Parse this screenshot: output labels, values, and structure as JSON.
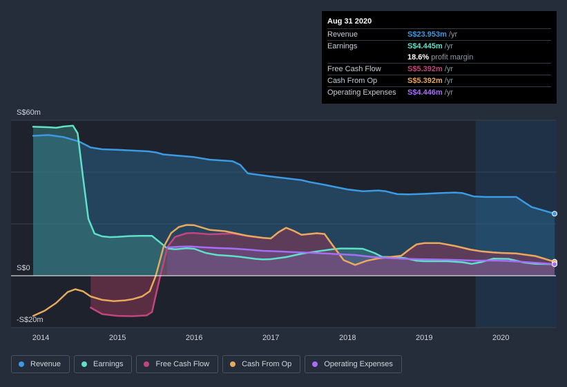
{
  "tooltip": {
    "date": "Aug 31 2020",
    "rows": [
      {
        "label": "Revenue",
        "value": "S$23.953m",
        "unit": "/yr",
        "color": "#3b9ae1"
      },
      {
        "label": "Earnings",
        "value": "S$4.445m",
        "unit": "/yr",
        "color": "#5fe0c8"
      },
      {
        "label": "",
        "value": "18.6%",
        "unit": "profit margin",
        "color": "#ffffff"
      },
      {
        "label": "Free Cash Flow",
        "value": "S$5.392m",
        "unit": "/yr",
        "color": "#c2457e"
      },
      {
        "label": "Cash From Op",
        "value": "S$5.392m",
        "unit": "/yr",
        "color": "#e8a95c"
      },
      {
        "label": "Operating Expenses",
        "value": "S$4.446m",
        "unit": "/yr",
        "color": "#a56ef5"
      }
    ]
  },
  "legend": [
    {
      "label": "Revenue",
      "color": "#3b9ae1"
    },
    {
      "label": "Earnings",
      "color": "#5fe0c8"
    },
    {
      "label": "Free Cash Flow",
      "color": "#c2457e"
    },
    {
      "label": "Cash From Op",
      "color": "#e8a95c"
    },
    {
      "label": "Operating Expenses",
      "color": "#a56ef5"
    }
  ],
  "chart_data": {
    "type": "area",
    "title": "",
    "currency_unit": "S$m",
    "ylim": [
      -20,
      60
    ],
    "y_tick_labels": [
      {
        "value": 60,
        "label": "S$60m"
      },
      {
        "value": 0,
        "label": "S$0"
      },
      {
        "value": -20,
        "label": "-S$20m"
      }
    ],
    "x_range": [
      2013.9,
      2020.7
    ],
    "x_ticks": [
      2014,
      2015,
      2016,
      2017,
      2018,
      2019,
      2020
    ],
    "x_tick_labels": [
      "2014",
      "2015",
      "2016",
      "2017",
      "2018",
      "2019",
      "2020"
    ],
    "forecast_start": 2019.67,
    "series": [
      {
        "name": "Revenue",
        "color": "#3b9ae1",
        "fill": true,
        "points": [
          [
            2013.9,
            54.0
          ],
          [
            2014.1,
            54.3
          ],
          [
            2014.3,
            53.5
          ],
          [
            2014.5,
            51.8
          ],
          [
            2014.65,
            49.5
          ],
          [
            2014.8,
            48.8
          ],
          [
            2015.0,
            48.6
          ],
          [
            2015.2,
            48.3
          ],
          [
            2015.4,
            48.0
          ],
          [
            2015.5,
            47.6
          ],
          [
            2015.6,
            46.8
          ],
          [
            2015.8,
            46.3
          ],
          [
            2016.0,
            45.8
          ],
          [
            2016.2,
            44.8
          ],
          [
            2016.4,
            44.4
          ],
          [
            2016.5,
            44.2
          ],
          [
            2016.6,
            42.8
          ],
          [
            2016.7,
            39.5
          ],
          [
            2016.9,
            38.7
          ],
          [
            2017.0,
            38.3
          ],
          [
            2017.2,
            37.6
          ],
          [
            2017.4,
            36.9
          ],
          [
            2017.5,
            36.2
          ],
          [
            2017.7,
            35.1
          ],
          [
            2017.9,
            33.9
          ],
          [
            2018.0,
            33.3
          ],
          [
            2018.2,
            32.6
          ],
          [
            2018.4,
            32.9
          ],
          [
            2018.5,
            32.6
          ],
          [
            2018.65,
            31.5
          ],
          [
            2018.8,
            31.4
          ],
          [
            2019.0,
            31.6
          ],
          [
            2019.2,
            31.9
          ],
          [
            2019.4,
            32.1
          ],
          [
            2019.5,
            31.9
          ],
          [
            2019.65,
            30.6
          ],
          [
            2019.8,
            30.4
          ],
          [
            2020.0,
            30.4
          ],
          [
            2020.2,
            30.4
          ],
          [
            2020.4,
            26.5
          ],
          [
            2020.7,
            23.95
          ]
        ]
      },
      {
        "name": "Earnings",
        "color": "#5fe0c8",
        "fill": true,
        "points": [
          [
            2013.9,
            57.5
          ],
          [
            2014.1,
            57.3
          ],
          [
            2014.2,
            57.1
          ],
          [
            2014.3,
            57.6
          ],
          [
            2014.42,
            57.9
          ],
          [
            2014.48,
            55.0
          ],
          [
            2014.55,
            38.0
          ],
          [
            2014.62,
            22.0
          ],
          [
            2014.7,
            16.3
          ],
          [
            2014.8,
            15.2
          ],
          [
            2014.9,
            14.9
          ],
          [
            2015.0,
            15.0
          ],
          [
            2015.15,
            15.3
          ],
          [
            2015.3,
            15.4
          ],
          [
            2015.45,
            15.4
          ],
          [
            2015.55,
            13.0
          ],
          [
            2015.65,
            10.5
          ],
          [
            2015.75,
            10.2
          ],
          [
            2015.9,
            10.6
          ],
          [
            2016.0,
            10.4
          ],
          [
            2016.15,
            8.8
          ],
          [
            2016.3,
            8.0
          ],
          [
            2016.5,
            7.6
          ],
          [
            2016.6,
            7.3
          ],
          [
            2016.8,
            6.5
          ],
          [
            2016.9,
            6.3
          ],
          [
            2017.0,
            6.4
          ],
          [
            2017.2,
            7.2
          ],
          [
            2017.4,
            8.5
          ],
          [
            2017.6,
            9.4
          ],
          [
            2017.8,
            10.2
          ],
          [
            2017.9,
            10.5
          ],
          [
            2018.0,
            10.5
          ],
          [
            2018.2,
            10.4
          ],
          [
            2018.35,
            8.8
          ],
          [
            2018.45,
            7.3
          ],
          [
            2018.6,
            7.2
          ],
          [
            2018.75,
            6.8
          ],
          [
            2018.9,
            5.8
          ],
          [
            2019.0,
            5.6
          ],
          [
            2019.3,
            5.6
          ],
          [
            2019.5,
            5.2
          ],
          [
            2019.62,
            4.6
          ],
          [
            2019.75,
            5.3
          ],
          [
            2019.9,
            6.6
          ],
          [
            2020.1,
            6.5
          ],
          [
            2020.3,
            5.1
          ],
          [
            2020.45,
            4.6
          ],
          [
            2020.7,
            4.445
          ]
        ]
      },
      {
        "name": "Free Cash Flow",
        "color": "#c2457e",
        "fill": true,
        "points": [
          [
            2014.65,
            -12.3
          ],
          [
            2014.8,
            -14.8
          ],
          [
            2015.0,
            -15.5
          ],
          [
            2015.2,
            -15.6
          ],
          [
            2015.38,
            -15.3
          ],
          [
            2015.45,
            -14.0
          ],
          [
            2015.55,
            -1.0
          ],
          [
            2015.65,
            11.0
          ],
          [
            2015.75,
            15.0
          ],
          [
            2015.9,
            16.4
          ],
          [
            2016.0,
            16.5
          ],
          [
            2016.2,
            16.0
          ],
          [
            2016.5,
            16.3
          ],
          [
            2016.7,
            15.3
          ],
          [
            2016.9,
            14.6
          ],
          [
            2017.0,
            14.4
          ],
          [
            2017.1,
            16.8
          ],
          [
            2017.2,
            18.5
          ],
          [
            2017.3,
            17.3
          ],
          [
            2017.4,
            15.8
          ],
          [
            2017.6,
            16.4
          ],
          [
            2017.7,
            16.1
          ],
          [
            2017.8,
            12.0
          ],
          [
            2017.95,
            6.0
          ],
          [
            2018.1,
            4.2
          ],
          [
            2018.25,
            5.8
          ],
          [
            2018.4,
            6.7
          ],
          [
            2018.55,
            7.2
          ],
          [
            2018.7,
            7.7
          ],
          [
            2018.8,
            10.0
          ],
          [
            2018.9,
            12.1
          ],
          [
            2019.0,
            12.6
          ],
          [
            2019.2,
            12.6
          ],
          [
            2019.4,
            11.5
          ],
          [
            2019.6,
            10.1
          ],
          [
            2019.75,
            9.4
          ],
          [
            2019.9,
            9.0
          ],
          [
            2020.0,
            8.8
          ],
          [
            2020.2,
            8.6
          ],
          [
            2020.45,
            7.6
          ],
          [
            2020.7,
            5.392
          ]
        ]
      },
      {
        "name": "Cash From Op",
        "color": "#e8a95c",
        "fill": false,
        "points": [
          [
            2013.9,
            -15.5
          ],
          [
            2014.05,
            -13.5
          ],
          [
            2014.2,
            -10.5
          ],
          [
            2014.35,
            -6.3
          ],
          [
            2014.45,
            -5.2
          ],
          [
            2014.55,
            -6.0
          ],
          [
            2014.65,
            -8.0
          ],
          [
            2014.8,
            -9.3
          ],
          [
            2014.95,
            -9.8
          ],
          [
            2015.1,
            -9.5
          ],
          [
            2015.2,
            -9.0
          ],
          [
            2015.32,
            -8.0
          ],
          [
            2015.42,
            -6.0
          ],
          [
            2015.5,
            0.0
          ],
          [
            2015.6,
            11.0
          ],
          [
            2015.7,
            16.5
          ],
          [
            2015.8,
            18.8
          ],
          [
            2015.9,
            19.6
          ],
          [
            2016.0,
            19.5
          ],
          [
            2016.2,
            17.7
          ],
          [
            2016.4,
            17.2
          ],
          [
            2016.55,
            16.3
          ],
          [
            2016.7,
            15.4
          ],
          [
            2016.9,
            14.6
          ],
          [
            2017.0,
            14.4
          ],
          [
            2017.1,
            16.8
          ],
          [
            2017.2,
            18.5
          ],
          [
            2017.3,
            17.3
          ],
          [
            2017.4,
            15.8
          ],
          [
            2017.6,
            16.4
          ],
          [
            2017.7,
            16.1
          ],
          [
            2017.8,
            12.0
          ],
          [
            2017.95,
            6.0
          ],
          [
            2018.1,
            4.2
          ],
          [
            2018.25,
            5.8
          ],
          [
            2018.4,
            6.7
          ],
          [
            2018.55,
            7.2
          ],
          [
            2018.7,
            7.7
          ],
          [
            2018.8,
            10.0
          ],
          [
            2018.9,
            12.1
          ],
          [
            2019.0,
            12.6
          ],
          [
            2019.2,
            12.6
          ],
          [
            2019.4,
            11.5
          ],
          [
            2019.6,
            10.1
          ],
          [
            2019.75,
            9.4
          ],
          [
            2019.9,
            9.0
          ],
          [
            2020.0,
            8.8
          ],
          [
            2020.2,
            8.6
          ],
          [
            2020.45,
            7.6
          ],
          [
            2020.7,
            5.392
          ]
        ]
      },
      {
        "name": "Operating Expenses",
        "color": "#a56ef5",
        "fill": true,
        "points": [
          [
            2015.65,
            10.9
          ],
          [
            2015.8,
            11.2
          ],
          [
            2015.95,
            11.3
          ],
          [
            2016.1,
            11.0
          ],
          [
            2016.3,
            10.7
          ],
          [
            2016.5,
            10.5
          ],
          [
            2016.7,
            10.1
          ],
          [
            2016.9,
            9.6
          ],
          [
            2017.1,
            9.4
          ],
          [
            2017.3,
            9.1
          ],
          [
            2017.5,
            8.9
          ],
          [
            2017.7,
            8.6
          ],
          [
            2017.9,
            8.3
          ],
          [
            2018.1,
            8.0
          ],
          [
            2018.3,
            7.3
          ],
          [
            2018.5,
            6.9
          ],
          [
            2018.7,
            6.6
          ],
          [
            2018.9,
            6.4
          ],
          [
            2019.1,
            6.3
          ],
          [
            2019.3,
            6.2
          ],
          [
            2019.5,
            6.0
          ],
          [
            2019.7,
            5.8
          ],
          [
            2019.9,
            5.9
          ],
          [
            2020.1,
            5.7
          ],
          [
            2020.3,
            5.3
          ],
          [
            2020.5,
            4.9
          ],
          [
            2020.7,
            4.446
          ]
        ]
      }
    ]
  }
}
